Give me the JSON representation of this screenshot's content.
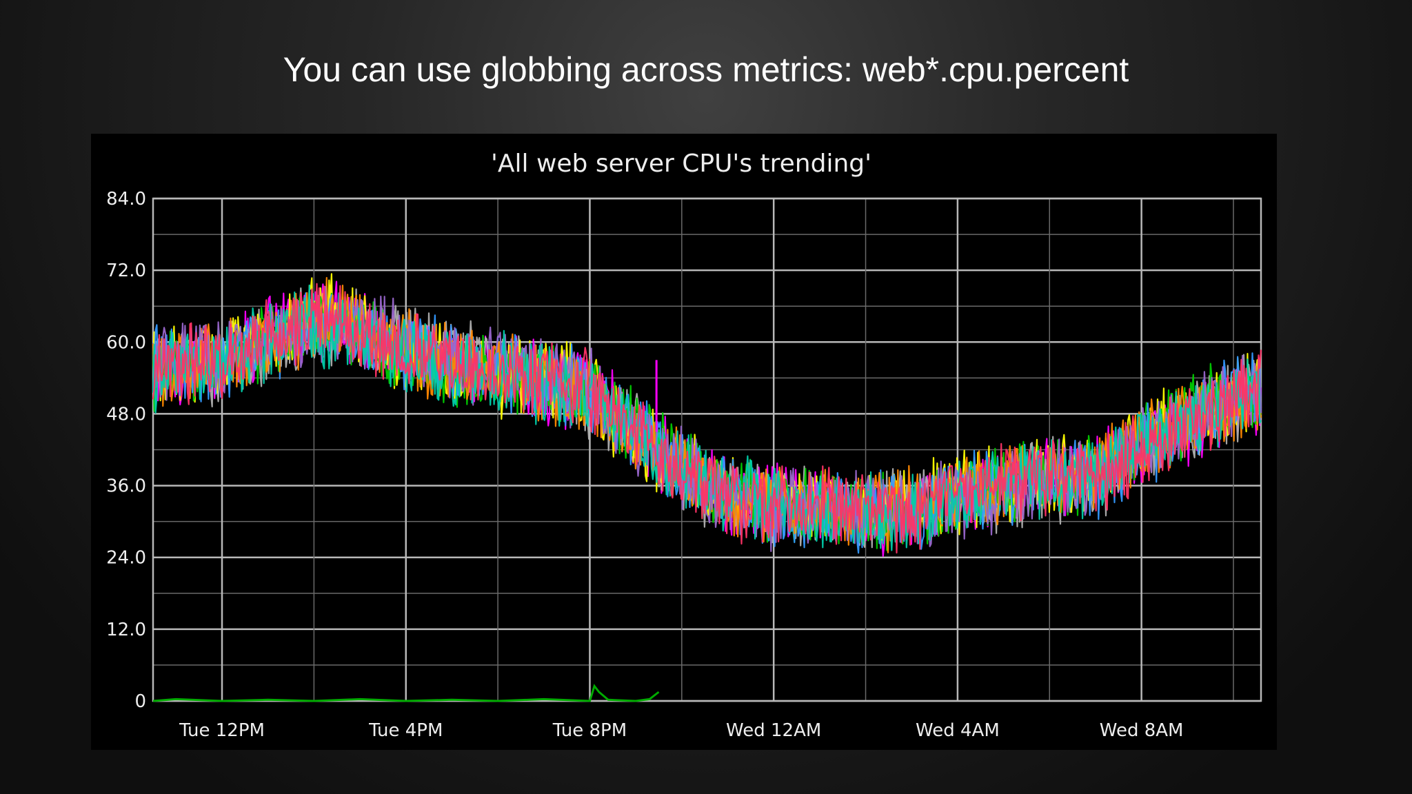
{
  "slide": {
    "title": "You can use globbing across metrics: web*.cpu.percent"
  },
  "chart_data": {
    "type": "line",
    "title": "'All web server CPU's trending'",
    "xlabel": "",
    "ylabel": "",
    "ylim": [
      0,
      84
    ],
    "xlim_hours": [
      10.5,
      34.6
    ],
    "y_ticks": [
      {
        "value": 84,
        "label": "84.0"
      },
      {
        "value": 72,
        "label": "72.0"
      },
      {
        "value": 60,
        "label": "60.0"
      },
      {
        "value": 48,
        "label": "48.0"
      },
      {
        "value": 36,
        "label": "36.0"
      },
      {
        "value": 24,
        "label": "24.0"
      },
      {
        "value": 12,
        "label": "12.0"
      },
      {
        "value": 0,
        "label": "0"
      }
    ],
    "x_ticks": [
      {
        "hour": 12,
        "label": "Tue 12PM"
      },
      {
        "hour": 16,
        "label": "Tue  4PM"
      },
      {
        "hour": 20,
        "label": "Tue  8PM"
      },
      {
        "hour": 24,
        "label": "Wed 12AM"
      },
      {
        "hour": 28,
        "label": "Wed  4AM"
      },
      {
        "hour": 32,
        "label": "Wed  8AM"
      }
    ],
    "grid": true,
    "legend": "none",
    "trend_x_hours": [
      10.5,
      12,
      13,
      14,
      15,
      16,
      17,
      18,
      19,
      20,
      21,
      22,
      23,
      24,
      25,
      26,
      27,
      28,
      29,
      30,
      31,
      32,
      33,
      34,
      34.6
    ],
    "series": [
      {
        "color": "#ff00ff",
        "values": [
          55,
          57,
          61,
          64,
          63,
          59,
          56,
          55,
          53,
          52,
          45,
          39,
          34,
          33,
          32,
          31,
          31,
          34,
          36,
          38,
          38,
          43,
          46,
          50,
          51
        ]
      },
      {
        "color": "#b0b0b0",
        "values": [
          56,
          56,
          60,
          63,
          62,
          60,
          57,
          56,
          54,
          51,
          45,
          38,
          34,
          32,
          32,
          32,
          32,
          34,
          35,
          37,
          37,
          42,
          47,
          50,
          52
        ]
      },
      {
        "color": "#ffff00",
        "values": [
          55,
          58,
          62,
          65,
          63,
          58,
          56,
          54,
          54,
          52,
          44,
          39,
          35,
          33,
          33,
          33,
          32,
          35,
          36,
          38,
          38,
          44,
          47,
          51,
          52
        ]
      },
      {
        "color": "#00cc00",
        "values": [
          54,
          57,
          61,
          63,
          61,
          58,
          55,
          56,
          53,
          51,
          46,
          40,
          34,
          33,
          33,
          31,
          32,
          33,
          36,
          37,
          38,
          43,
          48,
          50,
          51
        ]
      },
      {
        "color": "#3399ff",
        "values": [
          57,
          56,
          60,
          64,
          62,
          59,
          57,
          55,
          54,
          52,
          45,
          38,
          35,
          32,
          32,
          32,
          31,
          35,
          35,
          38,
          37,
          42,
          46,
          51,
          52
        ]
      },
      {
        "color": "#ff8800",
        "values": [
          55,
          57,
          60,
          64,
          63,
          59,
          56,
          55,
          53,
          51,
          45,
          39,
          34,
          33,
          32,
          32,
          32,
          34,
          36,
          37,
          38,
          43,
          47,
          49,
          51
        ]
      },
      {
        "color": "#9966cc",
        "values": [
          56,
          58,
          61,
          63,
          62,
          60,
          56,
          56,
          54,
          52,
          44,
          39,
          34,
          32,
          33,
          32,
          31,
          34,
          35,
          38,
          37,
          43,
          47,
          51,
          52
        ]
      },
      {
        "color": "#00ccaa",
        "values": [
          54,
          56,
          60,
          63,
          62,
          58,
          55,
          55,
          53,
          51,
          45,
          38,
          35,
          33,
          32,
          31,
          32,
          34,
          36,
          37,
          38,
          44,
          46,
          50,
          51
        ]
      },
      {
        "color": "#ff3366",
        "values": [
          55,
          57,
          61,
          64,
          62,
          59,
          56,
          54,
          54,
          52,
          45,
          39,
          34,
          33,
          33,
          32,
          31,
          35,
          36,
          38,
          37,
          42,
          47,
          50,
          52
        ]
      }
    ],
    "flat_series": {
      "color": "#00aa00",
      "x_hours": [
        10.5,
        11,
        12,
        13,
        14,
        15,
        16,
        17,
        18,
        19,
        20,
        20.1,
        20.2,
        20.4,
        21,
        21.3,
        21.5
      ],
      "values": [
        0,
        0.3,
        0,
        0.2,
        0,
        0.3,
        0,
        0.2,
        0,
        0.3,
        0,
        2.5,
        1.5,
        0.2,
        0,
        0.3,
        1.5
      ]
    },
    "spike": {
      "color": "#ff00ff",
      "x_hour": 21.45,
      "values": [
        45,
        57
      ]
    }
  }
}
